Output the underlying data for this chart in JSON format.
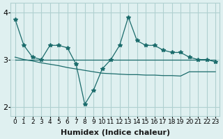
{
  "xlabel": "Humidex (Indice chaleur)",
  "ylabel": "",
  "x_data": [
    0,
    1,
    2,
    3,
    4,
    5,
    6,
    7,
    8,
    9,
    10,
    11,
    12,
    13,
    14,
    15,
    16,
    17,
    18,
    19,
    20,
    21,
    22,
    23
  ],
  "y_main": [
    3.85,
    3.3,
    3.05,
    3.0,
    3.3,
    3.3,
    3.25,
    2.9,
    2.05,
    2.35,
    2.8,
    3.0,
    3.3,
    3.9,
    3.4,
    3.3,
    3.3,
    3.2,
    3.15,
    3.15,
    3.05,
    3.0,
    3.0,
    2.95
  ],
  "y_trend1": [
    3.0,
    3.0,
    3.0,
    3.0,
    3.0,
    3.0,
    3.0,
    3.0,
    3.0,
    3.0,
    3.0,
    3.0,
    3.0,
    3.0,
    3.0,
    3.0,
    3.0,
    3.0,
    3.0,
    3.0,
    3.0,
    3.0,
    3.0,
    3.0
  ],
  "y_trend2": [
    3.05,
    3.0,
    2.97,
    2.93,
    2.9,
    2.87,
    2.83,
    2.8,
    2.77,
    2.74,
    2.71,
    2.7,
    2.69,
    2.68,
    2.68,
    2.67,
    2.67,
    2.66,
    2.66,
    2.65,
    2.74,
    2.74,
    2.74,
    2.74
  ],
  "bg_color": "#dff0f0",
  "grid_color": "#b0d0d0",
  "line_color": "#1a6b6b",
  "ylim": [
    1.8,
    4.2
  ],
  "yticks": [
    2,
    3,
    4
  ],
  "xtick_labels": [
    "0",
    "1",
    "2",
    "3",
    "4",
    "5",
    "6",
    "7",
    "8",
    "9",
    "10",
    "11",
    "12",
    "13",
    "14",
    "15",
    "16",
    "17",
    "18",
    "19",
    "20",
    "21",
    "22",
    "23"
  ]
}
